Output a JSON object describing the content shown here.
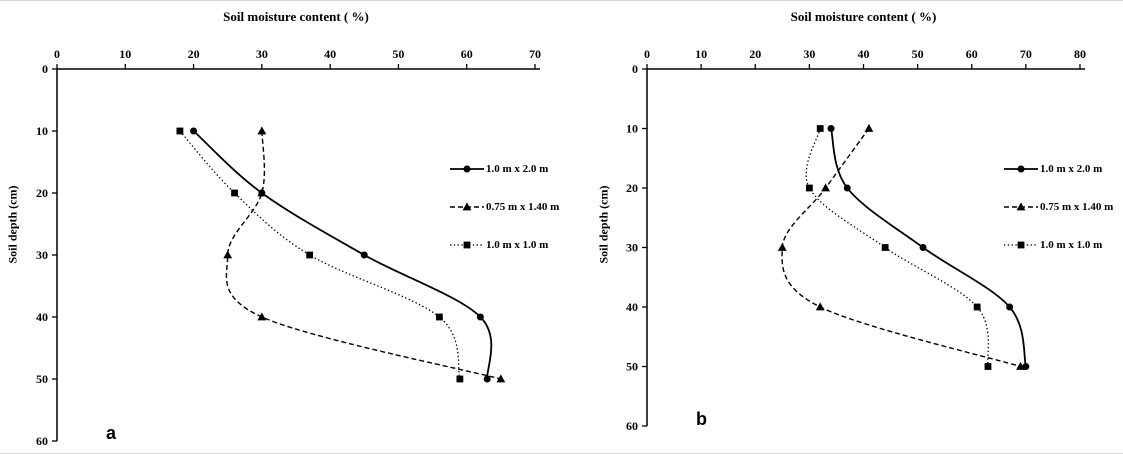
{
  "figure": {
    "background": "#ffffff",
    "line_color": "#000000"
  },
  "chart_data": [
    {
      "id": "a",
      "type": "line",
      "panel_label": "a",
      "title": "Soil moisture content ( %)",
      "xlabel": "Soil moisture content ( %)",
      "ylabel": "Soil depth (cm)",
      "x_axis_position": "top",
      "y_axis_inverted": true,
      "xlim": [
        0,
        70
      ],
      "ylim": [
        0,
        60
      ],
      "x_ticks": [
        0,
        10,
        20,
        30,
        40,
        50,
        60,
        70
      ],
      "y_ticks": [
        0,
        10,
        20,
        30,
        40,
        50,
        60
      ],
      "depths_cm": [
        10,
        20,
        30,
        40,
        50
      ],
      "series": [
        {
          "name": "1.0 m x 2.0 m",
          "marker": "circle",
          "line_style": "solid",
          "values": [
            20,
            30,
            45,
            62,
            63
          ]
        },
        {
          "name": "0.75 m x 1.40 m",
          "marker": "triangle",
          "line_style": "dashed",
          "values": [
            30,
            30,
            25,
            30,
            65
          ]
        },
        {
          "name": "1.0 m x 1.0 m",
          "marker": "square",
          "line_style": "dotted",
          "values": [
            18,
            26,
            37,
            56,
            59
          ]
        }
      ],
      "legend_position": "middle-right",
      "grid": false
    },
    {
      "id": "b",
      "type": "line",
      "panel_label": "b",
      "title": "Soil moisture content ( %)",
      "xlabel": "Soil moisture content ( %)",
      "ylabel": "Soil depth (cm)",
      "x_axis_position": "top",
      "y_axis_inverted": true,
      "xlim": [
        0,
        80
      ],
      "ylim": [
        0,
        60
      ],
      "x_ticks": [
        0,
        10,
        20,
        30,
        40,
        50,
        60,
        70,
        80
      ],
      "y_ticks": [
        0,
        10,
        20,
        30,
        40,
        50,
        60
      ],
      "depths_cm": [
        10,
        20,
        30,
        40,
        50
      ],
      "series": [
        {
          "name": "1.0 m x 2.0 m",
          "marker": "circle",
          "line_style": "solid",
          "values": [
            34,
            37,
            51,
            67,
            70
          ]
        },
        {
          "name": "0.75 m x 1.40 m",
          "marker": "triangle",
          "line_style": "dashed",
          "values": [
            41,
            33,
            25,
            32,
            69
          ]
        },
        {
          "name": "1.0 m x 1.0 m",
          "marker": "square",
          "line_style": "dotted",
          "values": [
            32,
            30,
            44,
            61,
            63
          ]
        }
      ],
      "legend_position": "middle-right",
      "grid": false
    }
  ]
}
